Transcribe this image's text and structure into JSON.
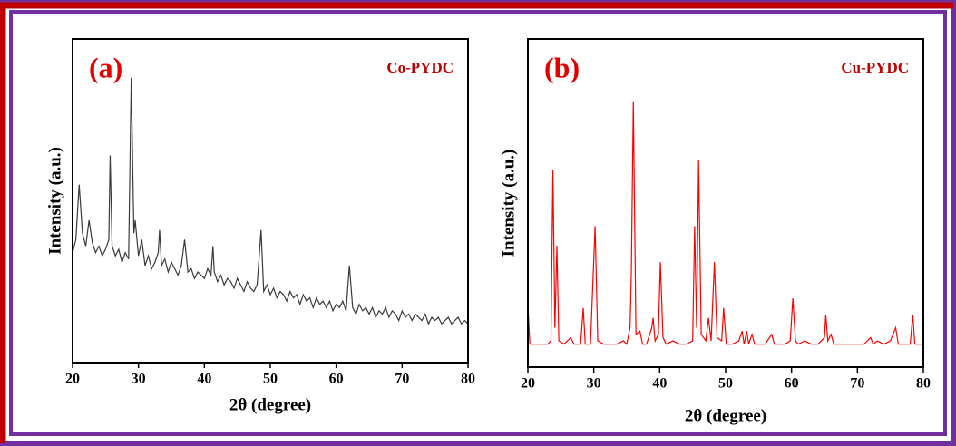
{
  "chart_data": [
    {
      "type": "line",
      "panel_label": "(a)",
      "x_label": "2θ (degree)",
      "y_label": "Intensity (a.u.)",
      "xlim": [
        20,
        80
      ],
      "xticks": [
        20,
        30,
        40,
        50,
        60,
        70,
        80
      ],
      "ylim": [
        0,
        100
      ],
      "x": [
        20,
        20.5,
        21,
        21.5,
        22,
        22.5,
        23,
        23.5,
        24,
        24.5,
        25,
        25.5,
        25.7,
        26,
        26.5,
        27,
        27.5,
        28,
        28.5,
        28.9,
        29.3,
        29.5,
        30,
        30.5,
        31,
        31.5,
        32,
        32.5,
        33,
        33.2,
        33.5,
        34,
        34.5,
        35,
        35.5,
        36,
        36.5,
        37,
        37.5,
        38,
        38.5,
        39,
        39.5,
        40,
        40.5,
        41,
        41.3,
        41.5,
        42,
        42.5,
        43,
        43.5,
        44,
        44.5,
        45,
        45.5,
        46,
        46.5,
        47,
        47.5,
        48,
        48.6,
        49,
        49.5,
        50,
        50.5,
        51,
        51.5,
        52,
        52.5,
        53,
        53.5,
        54,
        54.5,
        55,
        55.5,
        56,
        56.5,
        57,
        57.5,
        58,
        58.5,
        59,
        59.5,
        60,
        60.5,
        61,
        61.5,
        62,
        62.5,
        63,
        63.5,
        64,
        64.5,
        65,
        65.5,
        66,
        66.5,
        67,
        67.5,
        68,
        68.5,
        69,
        69.5,
        70,
        70.5,
        71,
        71.5,
        72,
        72.5,
        73,
        73.5,
        74,
        74.5,
        75,
        75.5,
        76,
        76.5,
        77,
        77.5,
        78,
        78.5,
        79,
        79.5,
        80
      ],
      "series": [
        {
          "name": "Co-PYDC",
          "color": "#3a3a3a",
          "values": [
            34,
            38,
            55,
            40,
            36,
            44,
            37,
            34,
            36,
            33,
            35,
            38,
            64,
            36,
            33,
            35,
            31,
            34,
            32,
            88,
            40,
            44,
            33,
            38,
            30,
            33,
            29,
            31,
            34,
            41,
            30,
            32,
            28,
            31,
            29,
            27,
            30,
            38,
            28,
            29,
            26,
            28,
            27,
            26,
            29,
            27,
            36,
            28,
            25,
            27,
            24,
            26,
            25,
            23,
            26,
            24,
            22,
            25,
            23,
            22,
            24,
            41,
            22,
            24,
            21,
            23,
            20,
            22,
            21,
            19,
            22,
            20,
            21,
            18,
            21,
            19,
            20,
            17,
            20,
            18,
            19,
            17,
            19,
            16,
            18,
            17,
            19,
            16,
            30,
            17,
            15,
            18,
            16,
            17,
            15,
            17,
            14,
            16,
            15,
            17,
            14,
            16,
            15,
            13,
            16,
            14,
            15,
            13,
            15,
            14,
            13,
            15,
            12,
            14,
            13,
            14,
            12,
            13,
            14,
            12,
            13,
            14,
            12,
            13,
            12
          ]
        }
      ]
    },
    {
      "type": "line",
      "panel_label": "(b)",
      "x_label": "2θ (degree)",
      "y_label": "Intensity (a.u.)",
      "xlim": [
        20,
        80
      ],
      "xticks": [
        20,
        30,
        40,
        50,
        60,
        70,
        80
      ],
      "ylim": [
        0,
        100
      ],
      "x": [
        20,
        20.3,
        21,
        22,
        23,
        23.5,
        23.8,
        24.1,
        24.4,
        24.7,
        25.5,
        26.5,
        27,
        28,
        28.4,
        28.7,
        29.5,
        30.2,
        30.6,
        31.5,
        32.5,
        33.5,
        34.5,
        35,
        35.5,
        35.7,
        36,
        36.4,
        37,
        37.4,
        38,
        38.8,
        39,
        39.3,
        39.8,
        40.1,
        40.5,
        41,
        42,
        43,
        44,
        45,
        45.3,
        45.6,
        45.9,
        46.3,
        47,
        47.4,
        47.8,
        48.3,
        48.7,
        49.4,
        49.7,
        50.1,
        51,
        52,
        52.5,
        52.8,
        53.2,
        53.5,
        54,
        54.4,
        55,
        56,
        57,
        57.4,
        58,
        59,
        59.8,
        60.2,
        60.6,
        61,
        62,
        63,
        64,
        65,
        65.2,
        65.5,
        66,
        66.4,
        67,
        68,
        69,
        70,
        71,
        72,
        72.4,
        73,
        74,
        75,
        75.8,
        76.2,
        77,
        78,
        78.4,
        78.7,
        79.5,
        80
      ],
      "series": [
        {
          "name": "Cu-PYDC",
          "color": "#ff0000",
          "values": [
            19,
            7,
            7,
            7,
            7,
            8,
            60,
            12,
            37,
            8,
            7,
            9,
            7,
            7,
            18,
            7,
            7,
            43,
            8,
            7,
            7,
            7,
            8,
            7,
            12,
            29,
            81,
            10,
            11,
            7,
            7,
            12,
            15,
            8,
            10,
            32,
            9,
            7,
            8,
            7,
            7,
            8,
            43,
            12,
            63,
            10,
            8,
            15,
            8,
            32,
            9,
            8,
            18,
            7,
            7,
            8,
            11,
            7,
            11,
            7,
            10,
            7,
            7,
            7,
            10,
            7,
            7,
            7,
            8,
            21,
            8,
            7,
            8,
            7,
            7,
            9,
            16,
            8,
            10,
            7,
            7,
            7,
            7,
            7,
            7,
            9,
            7,
            8,
            7,
            8,
            12,
            7,
            7,
            7,
            16,
            7,
            7,
            7
          ]
        }
      ]
    }
  ]
}
